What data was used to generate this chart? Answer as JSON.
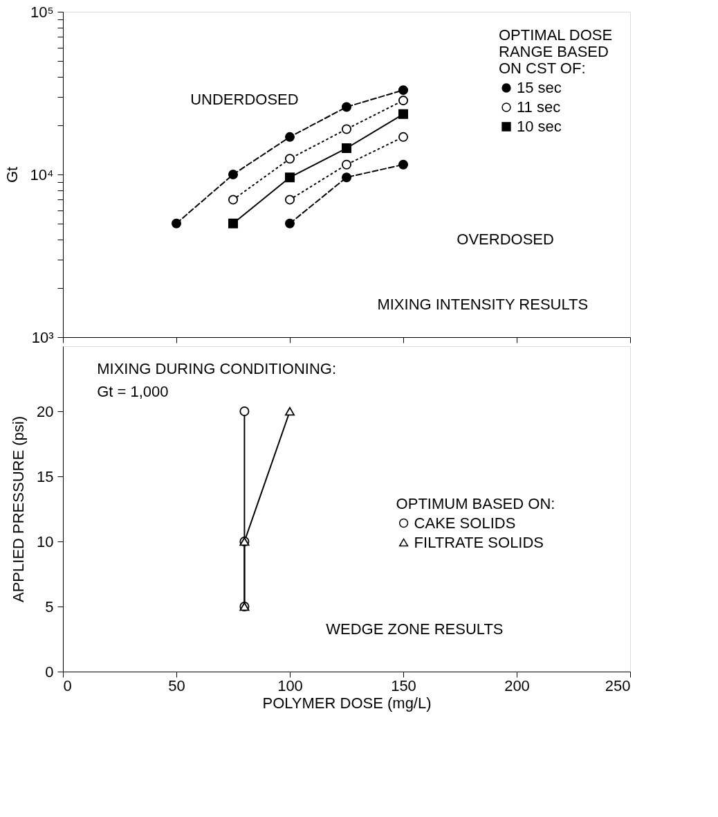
{
  "chart_data": [
    {
      "type": "line",
      "ylabel": "Gt",
      "legend_title": "OPTIMAL DOSE RANGE BASED ON CST OF:",
      "legend": "top right",
      "log": true,
      "tick_labels": "y",
      "xlim": [
        0,
        250
      ],
      "xticks": [
        0,
        50,
        100,
        150,
        200,
        250
      ],
      "ylim": [
        1000,
        100000
      ],
      "yticks": [
        {
          "value": 1000,
          "label": "10³"
        },
        {
          "value": 2000,
          "label": null
        },
        {
          "value": 3000,
          "label": null
        },
        {
          "value": 4000,
          "label": null
        },
        {
          "value": 5000,
          "label": null
        },
        {
          "value": 6000,
          "label": null
        },
        {
          "value": 7000,
          "label": null
        },
        {
          "value": 8000,
          "label": null
        },
        {
          "value": 9000,
          "label": null
        },
        {
          "value": 10000,
          "label": "10⁴"
        },
        {
          "value": 20000,
          "label": null
        },
        {
          "value": 30000,
          "label": null
        },
        {
          "value": 40000,
          "label": null
        },
        {
          "value": 50000,
          "label": null
        },
        {
          "value": 60000,
          "label": null
        },
        {
          "value": 70000,
          "label": null
        },
        {
          "value": 80000,
          "label": null
        },
        {
          "value": 90000,
          "label": null
        },
        {
          "value": 100000,
          "label": "10⁵"
        }
      ],
      "annotations": [
        "UNDERDOSED",
        "OVERDOSED",
        "MIXING INTENSITY RESULTS"
      ],
      "series": [
        {
          "name": "15 sec",
          "color": "#000000",
          "marker": "circle",
          "line_style": "dashed",
          "x": [
            50,
            75,
            100,
            125,
            150
          ],
          "values": [
            5000,
            10000,
            17000,
            26000,
            33000
          ]
        },
        {
          "name": "11 sec",
          "color": "#ffffff",
          "marker": "circle",
          "line_style": "dotted",
          "x": [
            75,
            100,
            125,
            150
          ],
          "values": [
            7000,
            12500,
            19000,
            28500
          ]
        },
        {
          "name": "10 sec",
          "color": "#000000",
          "marker": "square",
          "line_style": "solid",
          "x": [
            75,
            100,
            125,
            150
          ],
          "values": [
            5000,
            9600,
            14500,
            23500
          ]
        },
        {
          "color": "#ffffff",
          "marker": "circle",
          "line_style": "dotted",
          "x": [
            100,
            125,
            150
          ],
          "values": [
            7000,
            11500,
            17000
          ]
        },
        {
          "color": "#000000",
          "marker": "circle",
          "line_style": "dashed",
          "x": [
            100,
            125,
            150
          ],
          "values": [
            5000,
            9600,
            11500
          ]
        }
      ]
    },
    {
      "type": "line",
      "xlabel": "POLYMER DOSE (mg/L)",
      "ylabel": "APPLIED PRESSURE (psi)",
      "legend_title": "OPTIMUM BASED ON:",
      "legend": "right",
      "xlim": [
        0,
        250
      ],
      "xticks": [
        0,
        50,
        100,
        150,
        200,
        250
      ],
      "ylim": [
        0,
        25
      ],
      "yticks": [
        0,
        5,
        10,
        15,
        20
      ],
      "annotations": [
        "MIXING DURING CONDITIONING:",
        "Gt = 1,000",
        "WEDGE ZONE RESULTS"
      ],
      "series": [
        {
          "name": "CAKE SOLIDS",
          "color": "#ffffff",
          "marker": "circle",
          "line_style": "solid",
          "x": [
            80,
            80,
            80
          ],
          "values": [
            20,
            10,
            5
          ]
        },
        {
          "name": "FILTRATE SOLIDS",
          "color": "#ffffff",
          "marker": "triangle",
          "line_style": "solid",
          "x": [
            100,
            80,
            80
          ],
          "values": [
            20,
            10,
            5
          ]
        }
      ]
    }
  ]
}
